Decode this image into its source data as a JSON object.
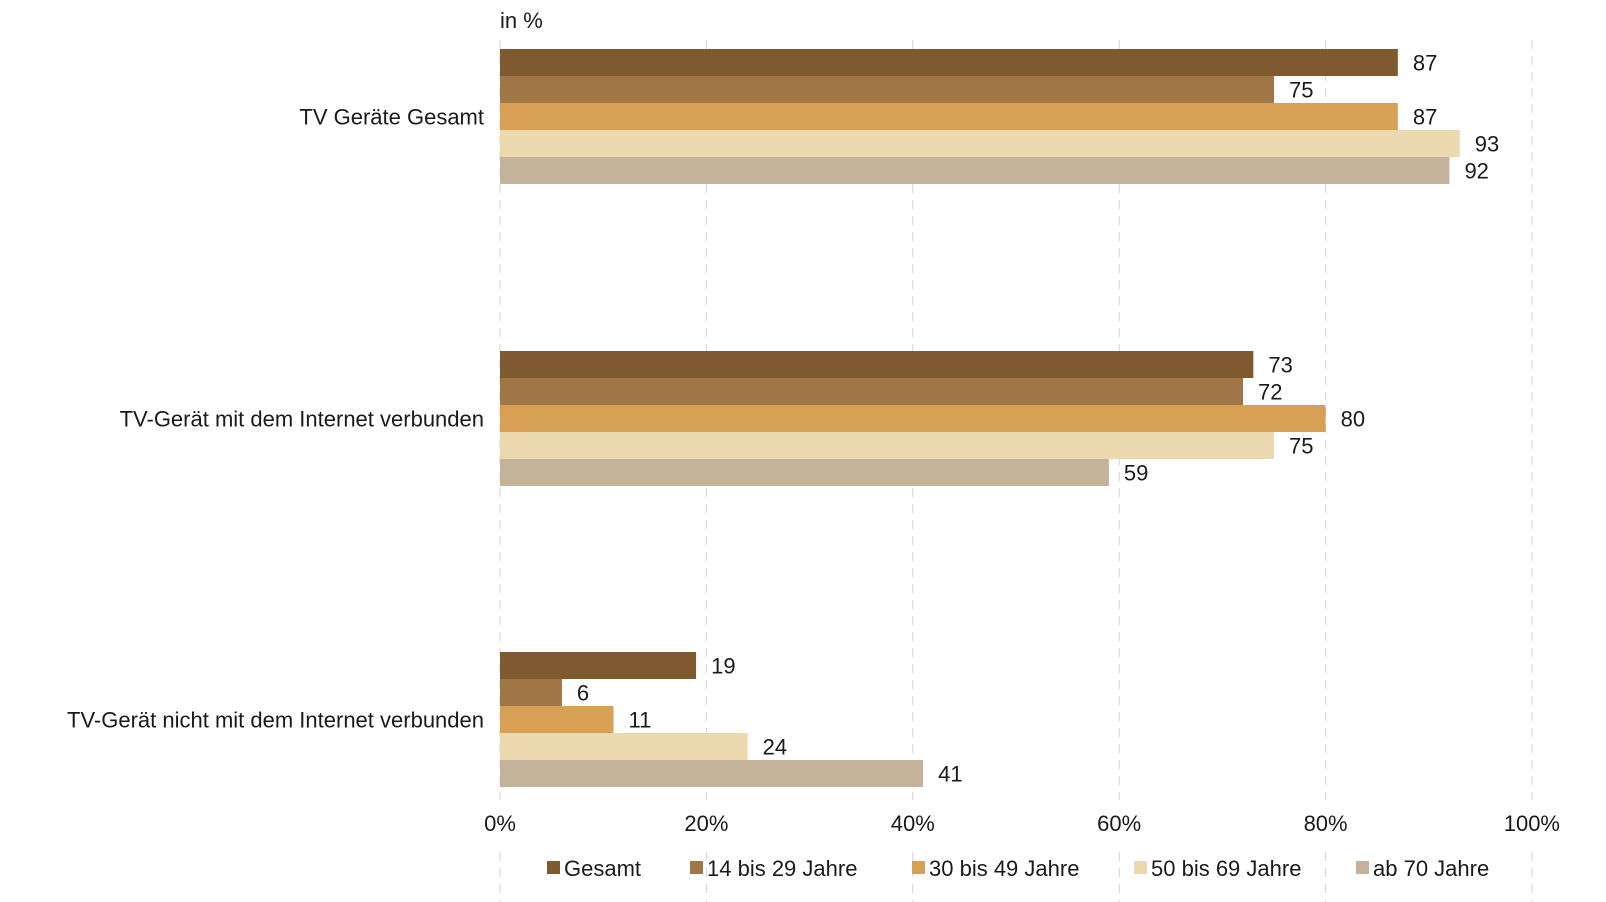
{
  "chart_data": {
    "type": "bar",
    "orientation": "horizontal",
    "unit_label": "in %",
    "categories": [
      "TV Geräte Gesamt",
      "TV-Gerät mit dem Internet verbunden",
      "TV-Gerät nicht mit dem Internet verbunden"
    ],
    "series": [
      {
        "name": "Gesamt",
        "color": "#7f5a30",
        "values": [
          87,
          73,
          19
        ]
      },
      {
        "name": "14 bis 29 Jahre",
        "color": "#a17647",
        "values": [
          75,
          72,
          6
        ]
      },
      {
        "name": "30 bis 49 Jahre",
        "color": "#d8a054",
        "values": [
          87,
          80,
          11
        ]
      },
      {
        "name": "50 bis 69 Jahre",
        "color": "#edd9b0",
        "values": [
          93,
          75,
          24
        ]
      },
      {
        "name": "ab 70 Jahre",
        "color": "#c4b29a",
        "values": [
          92,
          59,
          41
        ]
      }
    ],
    "xlim": [
      0,
      100
    ],
    "x_ticks": [
      "0%",
      "20%",
      "40%",
      "60%",
      "80%",
      "100%"
    ],
    "grid": true,
    "legend_position": "bottom"
  }
}
